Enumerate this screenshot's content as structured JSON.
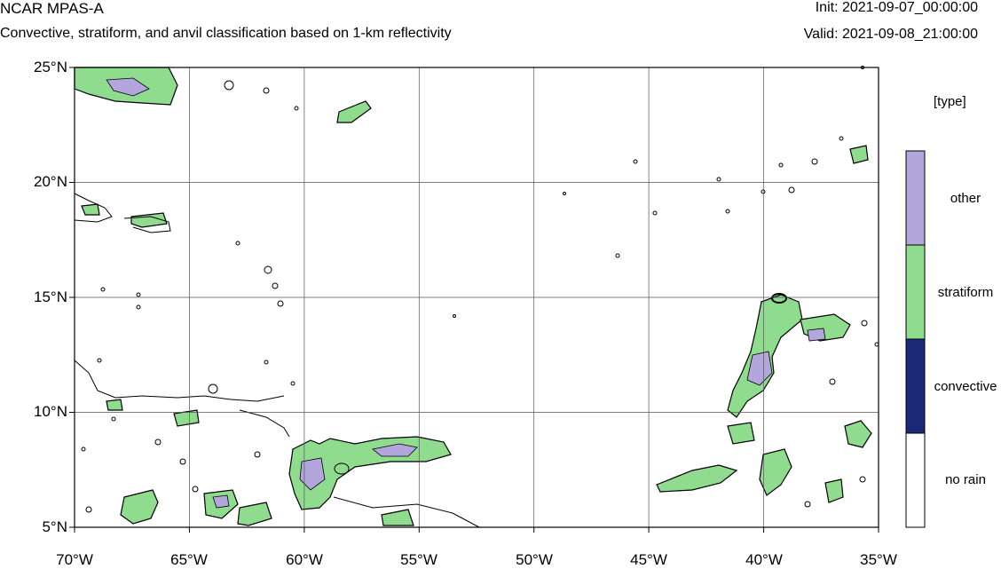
{
  "header": {
    "title": "NCAR MPAS-A",
    "subtitle": "Convective, stratiform, and anvil classification based on 1-km reflectivity",
    "init": "Init: 2021-09-07_00:00:00",
    "valid": "Valid: 2021-09-08_21:00:00"
  },
  "map": {
    "lat_range": [
      5,
      25
    ],
    "lon_range": [
      -70,
      -35
    ],
    "lat_labels": [
      "25°N",
      "20°N",
      "15°N",
      "10°N",
      "5°N"
    ],
    "lon_labels": [
      "70°W",
      "65°W",
      "60°W",
      "55°W",
      "50°W",
      "45°W",
      "40°W",
      "35°W"
    ],
    "grid": true
  },
  "legend": {
    "title": "[type]",
    "entries": [
      {
        "label": "other",
        "color": "#b3a6dc"
      },
      {
        "label": "stratiform",
        "color": "#8fdc8f"
      },
      {
        "label": "convective",
        "color": "#1b2a78"
      },
      {
        "label": "no rain",
        "color": "#ffffff"
      }
    ]
  },
  "colors": {
    "stratiform": "#8fdc8f",
    "other": "#b3a6dc",
    "convective": "#1b2a78",
    "outline": "#000000"
  }
}
